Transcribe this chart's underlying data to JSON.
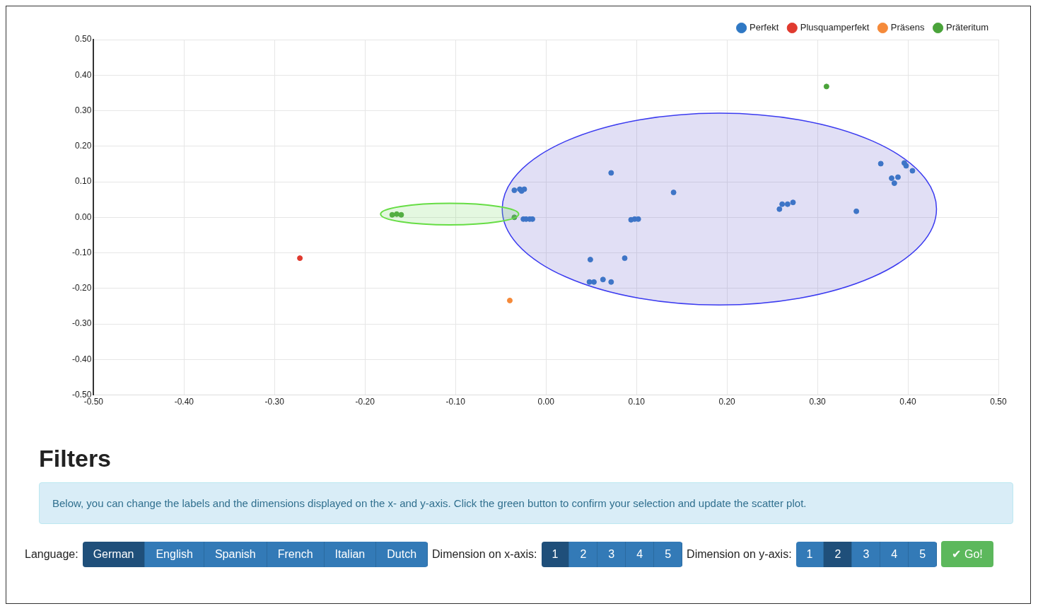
{
  "chart_data": {
    "type": "scatter",
    "legend": "top right",
    "grid": true,
    "marker": "circle",
    "xlim": [
      -0.5,
      0.5
    ],
    "ylim": [
      -0.5,
      0.5
    ],
    "xticks": [
      {
        "value": -0.5,
        "label": "-0.50"
      },
      {
        "value": -0.4,
        "label": "-0.40"
      },
      {
        "value": -0.3,
        "label": "-0.30"
      },
      {
        "value": -0.2,
        "label": "-0.20"
      },
      {
        "value": -0.1,
        "label": "-0.10"
      },
      {
        "value": 0,
        "label": "0.00"
      },
      {
        "value": 0.1,
        "label": "0.10"
      },
      {
        "value": 0.2,
        "label": "0.20"
      },
      {
        "value": 0.3,
        "label": "0.30"
      },
      {
        "value": 0.4,
        "label": "0.40"
      },
      {
        "value": 0.5,
        "label": "0.50"
      }
    ],
    "yticks": [
      {
        "value": -0.5,
        "label": "-0.50"
      },
      {
        "value": -0.4,
        "label": "-0.40"
      },
      {
        "value": -0.3,
        "label": "-0.30"
      },
      {
        "value": -0.2,
        "label": "-0.20"
      },
      {
        "value": -0.1,
        "label": "-0.10"
      },
      {
        "value": 0,
        "label": "0.00"
      },
      {
        "value": 0.1,
        "label": "0.10"
      },
      {
        "value": 0.2,
        "label": "0.20"
      },
      {
        "value": 0.3,
        "label": "0.30"
      },
      {
        "value": 0.4,
        "label": "0.40"
      },
      {
        "value": 0.5,
        "label": "0.50"
      }
    ],
    "series": [
      {
        "name": "Perfekt",
        "color": "#2f78c4",
        "x": [
          -0.035,
          -0.029,
          -0.024,
          -0.027,
          -0.025,
          -0.022,
          -0.018,
          -0.015,
          0.072,
          0.141,
          0.094,
          0.098,
          0.102,
          0.049,
          0.087,
          0.048,
          0.053,
          0.063,
          0.072,
          0.37,
          0.396,
          0.398,
          0.405,
          0.382,
          0.389,
          0.385,
          0.261,
          0.258,
          0.267,
          0.273,
          0.343
        ],
        "values": [
          0.076,
          0.079,
          0.079,
          0.074,
          -0.005,
          -0.005,
          -0.005,
          -0.005,
          0.125,
          0.07,
          -0.007,
          -0.005,
          -0.005,
          -0.119,
          -0.115,
          -0.182,
          -0.182,
          -0.175,
          -0.182,
          0.151,
          0.153,
          0.145,
          0.131,
          0.11,
          0.113,
          0.096,
          0.037,
          0.023,
          0.037,
          0.042,
          0.017
        ]
      },
      {
        "name": "Plusquamperfekt",
        "color": "#e03a2f",
        "x": [
          -0.272
        ],
        "values": [
          -0.115
        ]
      },
      {
        "name": "Präsens",
        "color": "#f58a3a",
        "x": [
          -0.04
        ],
        "values": [
          -0.234
        ]
      },
      {
        "name": "Präteritum",
        "color": "#4aa33a",
        "x": [
          -0.17,
          -0.165,
          -0.16,
          -0.035,
          0.31
        ],
        "values": [
          0.007,
          0.009,
          0.007,
          0.0,
          0.368
        ]
      }
    ],
    "annotations": [
      "Filters",
      "Below, you can change the labels and the dimensions displayed on the x- and y-axis. Click the green button to confirm your selection and update the scatter plot.",
      "Language:",
      "German",
      "English",
      "Spanish",
      "French",
      "Italian",
      "Dutch",
      "Dimension on x-axis:",
      "1",
      "2",
      "3",
      "4",
      "5",
      "Dimension on y-axis:",
      "1",
      "2",
      "3",
      "4",
      "5",
      "✔ Go!"
    ]
  }
}
